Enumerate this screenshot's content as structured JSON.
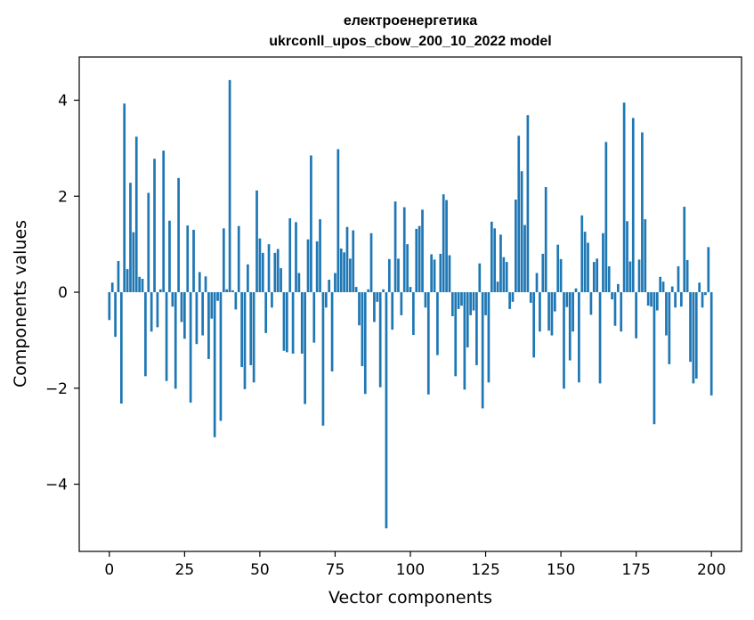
{
  "chart_data": {
    "type": "bar",
    "title": "електроенергетика",
    "subtitle": "ukrconll_upos_cbow_200_10_2022 model",
    "xlabel": "Vector components",
    "ylabel": "Components values",
    "xlim": [
      -10,
      210
    ],
    "ylim": [
      -5.4,
      4.9
    ],
    "xticks": [
      0,
      25,
      50,
      75,
      100,
      125,
      150,
      175,
      200
    ],
    "yticks": [
      -4,
      -2,
      0,
      2,
      4
    ],
    "ytick_labels": [
      "−4",
      "−2",
      "0",
      "2",
      "4"
    ],
    "grid": false,
    "bar_color": "#1f77b4",
    "values": [
      -0.58,
      0.2,
      -0.93,
      0.65,
      -2.32,
      3.93,
      0.48,
      2.28,
      1.25,
      3.24,
      0.32,
      0.28,
      -1.75,
      2.07,
      -0.82,
      2.78,
      -0.73,
      0.06,
      2.95,
      -1.85,
      1.49,
      -0.3,
      -2.01,
      2.38,
      -0.62,
      -0.97,
      1.39,
      -2.3,
      1.3,
      -1.08,
      0.42,
      -0.9,
      0.33,
      -1.39,
      -0.55,
      -3.02,
      -0.18,
      -2.68,
      1.33,
      0.06,
      4.42,
      0.04,
      -0.36,
      1.38,
      -1.56,
      -2.02,
      0.58,
      -1.52,
      -1.88,
      2.12,
      1.12,
      0.82,
      -0.85,
      1.0,
      -0.32,
      0.82,
      0.9,
      0.5,
      -1.22,
      -1.25,
      1.54,
      -1.28,
      1.46,
      0.4,
      -1.28,
      -2.33,
      1.1,
      2.85,
      -1.05,
      1.06,
      1.52,
      -2.78,
      -0.32,
      0.26,
      -1.65,
      0.4,
      2.98,
      0.91,
      0.83,
      1.36,
      0.7,
      1.29,
      0.11,
      -0.69,
      -1.54,
      -2.12,
      0.06,
      1.23,
      -0.62,
      -0.2,
      -1.98,
      0.06,
      -4.92,
      0.69,
      -0.78,
      1.89,
      0.7,
      -0.48,
      1.77,
      1.0,
      0.11,
      -0.89,
      1.32,
      1.38,
      1.72,
      -0.32,
      -2.13,
      0.79,
      0.68,
      -1.31,
      0.8,
      2.04,
      1.92,
      0.77,
      -0.5,
      -1.75,
      -0.35,
      -0.28,
      -2.03,
      -1.15,
      -0.48,
      -0.38,
      -1.52,
      0.6,
      -2.42,
      -0.48,
      -1.88,
      1.47,
      1.33,
      0.22,
      1.2,
      0.73,
      0.63,
      -0.35,
      -0.2,
      1.93,
      3.26,
      2.52,
      1.4,
      3.69,
      -0.22,
      -1.36,
      0.4,
      -0.82,
      0.8,
      2.19,
      -0.8,
      -0.9,
      -0.4,
      0.99,
      0.69,
      -2.01,
      -0.31,
      -1.42,
      -0.82,
      0.08,
      -1.88,
      1.6,
      1.26,
      1.03,
      -0.47,
      0.63,
      0.7,
      -1.9,
      1.23,
      3.13,
      0.54,
      -0.15,
      -0.7,
      0.17,
      -0.82,
      3.95,
      1.48,
      0.64,
      3.63,
      -0.96,
      0.68,
      3.33,
      1.52,
      -0.28,
      -0.3,
      -2.75,
      -0.38,
      0.32,
      0.22,
      -0.9,
      -1.5,
      0.12,
      -0.32,
      0.54,
      -0.3,
      1.78,
      0.67,
      -1.45,
      -1.9,
      -1.8,
      0.2,
      -0.32,
      -0.06,
      0.94,
      -2.15
    ]
  }
}
